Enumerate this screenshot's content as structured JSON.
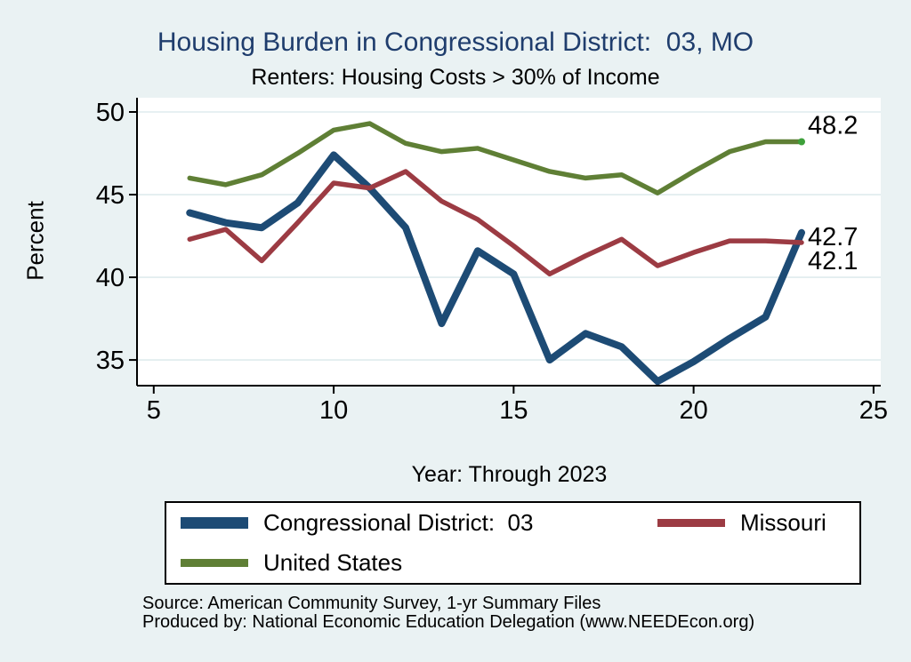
{
  "title": "Housing Burden in Congressional District:  03, MO",
  "subtitle": "Renters: Housing Costs > 30% of Income",
  "colors": {
    "background": "#eaf2f3",
    "plot_background": "#ffffff",
    "gridline": "#dfebed",
    "axis": "#000000",
    "title_text": "#1f3d6d",
    "cd03_line": "#1d4b75",
    "missouri_line": "#9c3b43",
    "us_line": "#5f7f35",
    "us_end_marker": "#3da03a"
  },
  "chart_data": {
    "type": "line",
    "title": "Housing Burden in Congressional District:  03, MO",
    "subtitle": "Renters: Housing Costs > 30% of Income",
    "xlabel": "Year: Through 2023",
    "ylabel": "Percent",
    "x_ticks": [
      5,
      10,
      15,
      20,
      25
    ],
    "y_ticks": [
      35,
      40,
      45,
      50
    ],
    "xlim": [
      4.56,
      25.2
    ],
    "ylim": [
      33.5,
      50.86
    ],
    "grid": "horizontal",
    "legend_position": "bottom",
    "x": [
      6,
      7,
      8,
      9,
      10,
      11,
      12,
      13,
      14,
      15,
      16,
      17,
      18,
      19,
      20,
      21,
      22,
      23
    ],
    "series": [
      {
        "name": "Congressional District:  03",
        "color": "#1d4b75",
        "end_label": "42.7",
        "values": [
          43.9,
          43.3,
          43.0,
          44.5,
          47.4,
          45.4,
          43.0,
          37.2,
          41.6,
          40.2,
          35.0,
          36.6,
          35.8,
          33.7,
          34.9,
          36.3,
          37.6,
          42.7
        ]
      },
      {
        "name": "Missouri",
        "color": "#9c3b43",
        "end_label": "42.1",
        "values": [
          42.3,
          42.9,
          41.0,
          43.3,
          45.7,
          45.4,
          46.4,
          44.6,
          43.5,
          41.9,
          40.2,
          41.3,
          42.3,
          40.7,
          41.5,
          42.2,
          42.2,
          42.1
        ]
      },
      {
        "name": "United States",
        "color": "#5f7f35",
        "end_label": "48.2",
        "values": [
          46.0,
          45.6,
          46.2,
          47.5,
          48.9,
          49.3,
          48.1,
          47.6,
          47.8,
          47.1,
          46.4,
          46.0,
          46.2,
          45.1,
          46.4,
          47.6,
          48.2,
          48.2
        ]
      }
    ]
  },
  "footer": {
    "source": "Source: American Community Survey, 1-yr Summary Files",
    "produced_by": "Produced by: National Economic Education Delegation (www.NEEDEcon.org)"
  }
}
